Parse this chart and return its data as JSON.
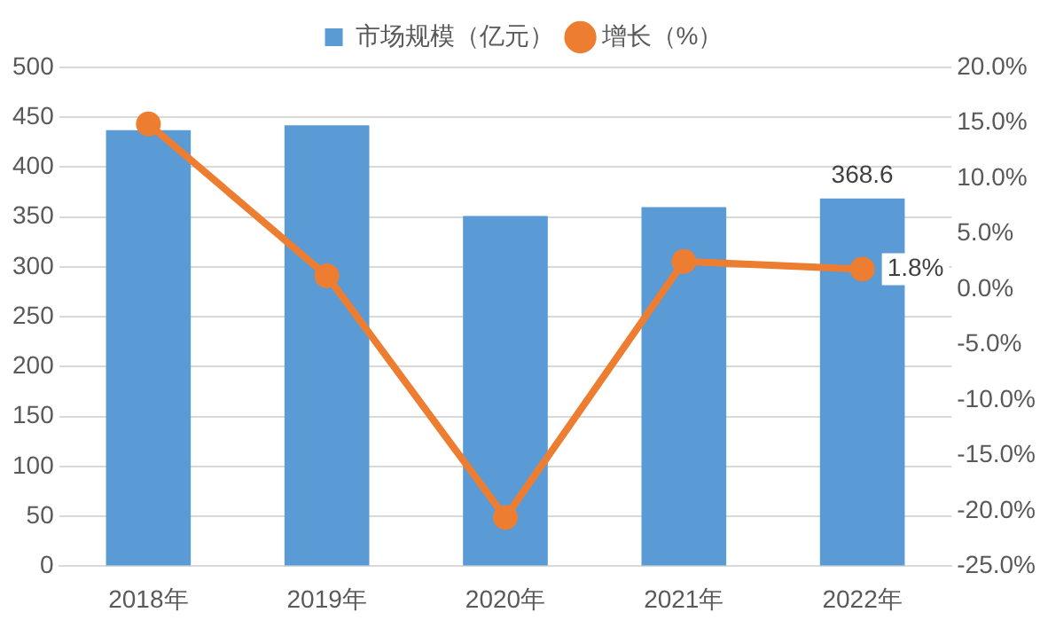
{
  "chart_data": {
    "type": "bar",
    "categories": [
      "2018年",
      "2019年",
      "2020年",
      "2021年",
      "2022年"
    ],
    "series": [
      {
        "name": "市场规模（亿元）",
        "color": "#5b9bd5",
        "values": [
          437,
          442,
          351,
          360,
          368.6
        ],
        "value_labels": [
          null,
          null,
          null,
          null,
          "368.6"
        ]
      },
      {
        "name": "增长（%）",
        "type": "line",
        "axis": "y2",
        "color": "#ed7d31",
        "marker": "circle",
        "values": [
          14.9,
          1.2,
          -20.6,
          2.5,
          1.8
        ],
        "value_labels": [
          null,
          null,
          null,
          null,
          "1.8%"
        ]
      }
    ],
    "ylim": [
      0,
      500
    ],
    "yticks": [
      0,
      50,
      100,
      150,
      200,
      250,
      300,
      350,
      400,
      450,
      500
    ],
    "y2lim": [
      -25,
      20
    ],
    "y2ticks": [
      {
        "value": -25,
        "label": "-25.0%"
      },
      {
        "value": -20,
        "label": "-20.0%"
      },
      {
        "value": -15,
        "label": "-15.0%"
      },
      {
        "value": -10,
        "label": "-10.0%"
      },
      {
        "value": -5,
        "label": "-5.0%"
      },
      {
        "value": 0,
        "label": "0.0%"
      },
      {
        "value": 5,
        "label": "5.0%"
      },
      {
        "value": 10,
        "label": "10.0%"
      },
      {
        "value": 15,
        "label": "15.0%"
      },
      {
        "value": 20,
        "label": "20.0%"
      }
    ],
    "grid": "y",
    "legend": "top"
  }
}
